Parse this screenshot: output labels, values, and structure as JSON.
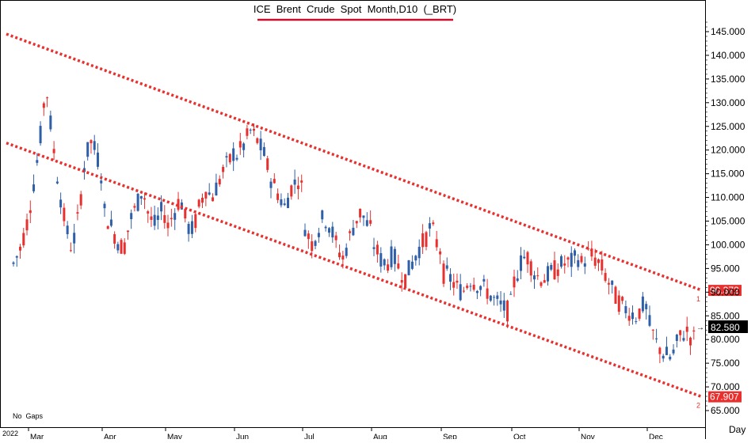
{
  "chart_data": {
    "type": "candlestick",
    "title": "ICE  Brent  Crude  Spot  Month,D10  (_BRT)",
    "no_gaps_label": "No  Gaps",
    "year_label": "2022",
    "x_unit_label": "Day",
    "months": [
      "Mar",
      "Apr",
      "May",
      "Jun",
      "Jul",
      "Aug",
      "Sep",
      "Oct",
      "Nov",
      "Dec"
    ],
    "ylim": [
      63,
      150
    ],
    "y_ticks": [
      65,
      70,
      75,
      80,
      85,
      90,
      95,
      100,
      105,
      110,
      115,
      120,
      125,
      130,
      135,
      140,
      145
    ],
    "y_tick_labels": [
      "65.000",
      "70.000",
      "75.000",
      "80.000",
      "85.000",
      "90.000",
      "95.000",
      "100.000",
      "105.000",
      "110.000",
      "115.000",
      "120.000",
      "125.000",
      "130.000",
      "135.000",
      "140.000",
      "145.000"
    ],
    "grid": false,
    "last_price": 82.58,
    "last_price_label": "82.580",
    "up_color": "#2e5fa8",
    "down_color": "#e8312f",
    "channel_color": "#e8312f",
    "channel_lines": [
      {
        "id": "1",
        "label": "1",
        "value_label": "90.372",
        "start": 144.5,
        "end": 90.372
      },
      {
        "id": "2",
        "label": "2",
        "value_label": "67.907",
        "start": 121.5,
        "end": 67.907
      }
    ],
    "price_path": [
      {
        "month": "Mar",
        "values": [
          96,
          99,
          104,
          112,
          121,
          134,
          122,
          112,
          104,
          99,
          106,
          118,
          122,
          118,
          112
        ]
      },
      {
        "month": "Apr",
        "values": [
          107,
          104,
          101,
          99,
          105,
          108,
          112,
          106,
          104,
          107,
          106
        ]
      },
      {
        "month": "May",
        "values": [
          104,
          107,
          110,
          104,
          103,
          108,
          112,
          110,
          113,
          116,
          118,
          121
        ]
      },
      {
        "month": "Jun",
        "values": [
          119,
          121,
          124,
          122,
          119,
          114,
          111,
          108,
          112,
          114,
          110
        ]
      },
      {
        "month": "Jul",
        "values": [
          104,
          100,
          103,
          106,
          104,
          100,
          97,
          101,
          105,
          107,
          104,
          102
        ]
      },
      {
        "month": "Aug",
        "values": [
          100,
          97,
          96,
          98,
          95,
          93,
          96,
          99,
          101,
          104,
          100,
          98
        ]
      },
      {
        "month": "Sep",
        "values": [
          94,
          93,
          91,
          90,
          93,
          92,
          91,
          90,
          88,
          87,
          86,
          89
        ]
      },
      {
        "month": "Oct",
        "values": [
          92,
          96,
          98,
          95,
          93,
          93,
          94,
          95,
          96,
          96,
          97,
          98
        ]
      },
      {
        "month": "Nov",
        "values": [
          96,
          98,
          97,
          95,
          92,
          89,
          87,
          86,
          85,
          87,
          86
        ]
      },
      {
        "month": "Dec",
        "values": [
          83,
          79,
          77,
          76,
          80,
          82,
          80,
          82,
          83
        ]
      }
    ]
  }
}
